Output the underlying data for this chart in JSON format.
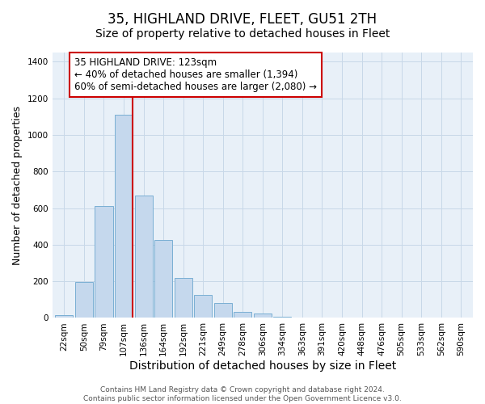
{
  "title": "35, HIGHLAND DRIVE, FLEET, GU51 2TH",
  "subtitle": "Size of property relative to detached houses in Fleet",
  "xlabel": "Distribution of detached houses by size in Fleet",
  "ylabel": "Number of detached properties",
  "bar_labels": [
    "22sqm",
    "50sqm",
    "79sqm",
    "107sqm",
    "136sqm",
    "164sqm",
    "192sqm",
    "221sqm",
    "249sqm",
    "278sqm",
    "306sqm",
    "334sqm",
    "363sqm",
    "391sqm",
    "420sqm",
    "448sqm",
    "476sqm",
    "505sqm",
    "533sqm",
    "562sqm",
    "590sqm"
  ],
  "bar_values": [
    15,
    195,
    610,
    1110,
    670,
    425,
    220,
    125,
    80,
    35,
    25,
    5,
    0,
    0,
    0,
    0,
    0,
    0,
    0,
    0,
    0
  ],
  "bar_color": "#c5d8ed",
  "bar_edge_color": "#7aafd4",
  "vline_x": 3.45,
  "vline_color": "#cc0000",
  "annotation_text": "35 HIGHLAND DRIVE: 123sqm\n← 40% of detached houses are smaller (1,394)\n60% of semi-detached houses are larger (2,080) →",
  "annotation_box_color": "white",
  "annotation_box_edgecolor": "#cc0000",
  "ylim": [
    0,
    1450
  ],
  "yticks": [
    0,
    200,
    400,
    600,
    800,
    1000,
    1200,
    1400
  ],
  "footer1": "Contains HM Land Registry data © Crown copyright and database right 2024.",
  "footer2": "Contains public sector information licensed under the Open Government Licence v3.0.",
  "title_fontsize": 12,
  "subtitle_fontsize": 10,
  "xlabel_fontsize": 10,
  "ylabel_fontsize": 9,
  "tick_fontsize": 7.5,
  "annotation_fontsize": 8.5,
  "footer_fontsize": 6.5,
  "bg_color": "#e8f0f8",
  "grid_color": "#c8d8e8"
}
